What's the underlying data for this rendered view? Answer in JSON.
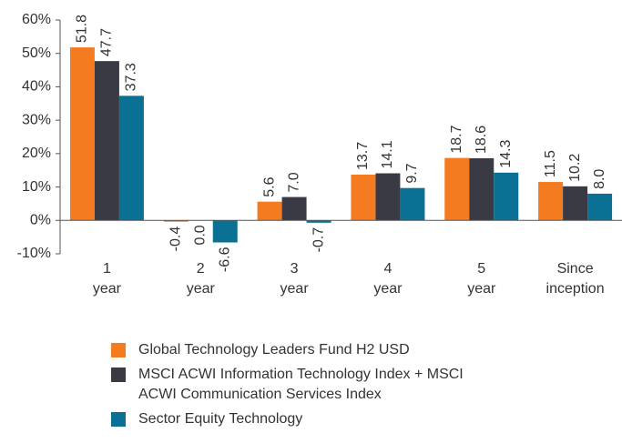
{
  "chart_data": {
    "type": "bar",
    "categories": [
      "1 year",
      "2 year",
      "3 year",
      "4 year",
      "5 year",
      "Since inception"
    ],
    "series": [
      {
        "name": "Global Technology Leaders Fund H2 USD",
        "color": "#f47b20",
        "values": [
          51.8,
          -0.4,
          5.6,
          13.7,
          18.7,
          11.5
        ],
        "value_labels": [
          "51.8",
          "-0.4",
          "5.6",
          "13.7",
          "18.7",
          "11.5"
        ]
      },
      {
        "name": "MSCI ACWI Information Technology Index + MSCI ACWI Communication Services Index",
        "color": "#3a3a45",
        "values": [
          47.7,
          0,
          7,
          14.1,
          18.6,
          10.2
        ],
        "value_labels": [
          "47.7",
          "0.0",
          "7.0",
          "14.1",
          "18.6",
          "10.2"
        ]
      },
      {
        "name": "Sector Equity Technology",
        "color": "#0a7194",
        "values": [
          37.3,
          -6.6,
          -0.7,
          9.7,
          14.3,
          8
        ],
        "value_labels": [
          "37.3",
          "-6.6",
          "-0.7",
          "9.7",
          "14.3",
          "8.0"
        ]
      }
    ],
    "ylim": [
      -10,
      60
    ],
    "yticks": [
      {
        "value": -10,
        "label": "-10%"
      },
      {
        "value": 0,
        "label": "0%"
      },
      {
        "value": 10,
        "label": "10%"
      },
      {
        "value": 20,
        "label": "20%"
      },
      {
        "value": 30,
        "label": "30%"
      },
      {
        "value": 40,
        "label": "40%"
      },
      {
        "value": 50,
        "label": "50%"
      },
      {
        "value": 60,
        "label": "60%"
      }
    ],
    "grid": false
  }
}
